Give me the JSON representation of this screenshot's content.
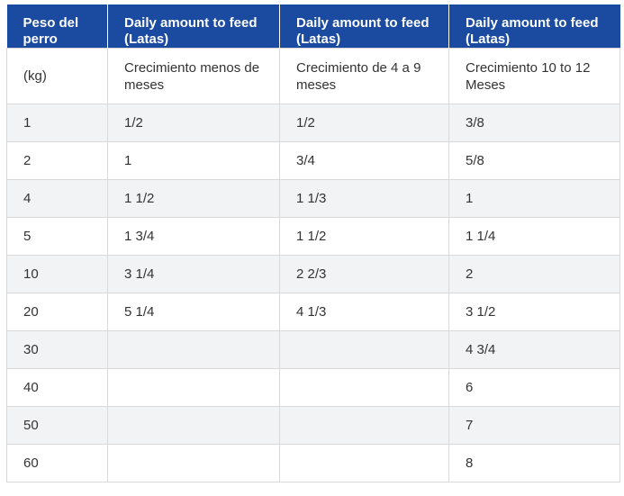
{
  "table": {
    "headers": [
      "Peso del perro",
      "Daily amount to feed (Latas)",
      "Daily amount to feed (Latas)",
      "Daily amount to feed (Latas)"
    ],
    "subheader": [
      "(kg)",
      "Crecimiento menos de meses",
      "Crecimiento de 4 a 9 meses",
      "Crecimiento 10 to 12 Meses"
    ],
    "rows": [
      [
        "1",
        "1/2",
        "1/2",
        "3/8"
      ],
      [
        "2",
        "1",
        "3/4",
        "5/8"
      ],
      [
        "4",
        "1 1/2",
        "1 1/3",
        "1"
      ],
      [
        "5",
        "1 3/4",
        "1 1/2",
        "1 1/4"
      ],
      [
        "10",
        "3 1/4",
        "2 2/3",
        "2"
      ],
      [
        "20",
        "5 1/4",
        "4 1/3",
        "3 1/2"
      ],
      [
        "30",
        "",
        "",
        "4 3/4"
      ],
      [
        "40",
        "",
        "",
        "6"
      ],
      [
        "50",
        "",
        "",
        "7"
      ],
      [
        "60",
        "",
        "",
        "8"
      ]
    ]
  },
  "colors": {
    "header_bg": "#1b4ba0",
    "header_text": "#ffffff",
    "stripe": "#f2f3f5",
    "border": "#d9d9d9"
  }
}
